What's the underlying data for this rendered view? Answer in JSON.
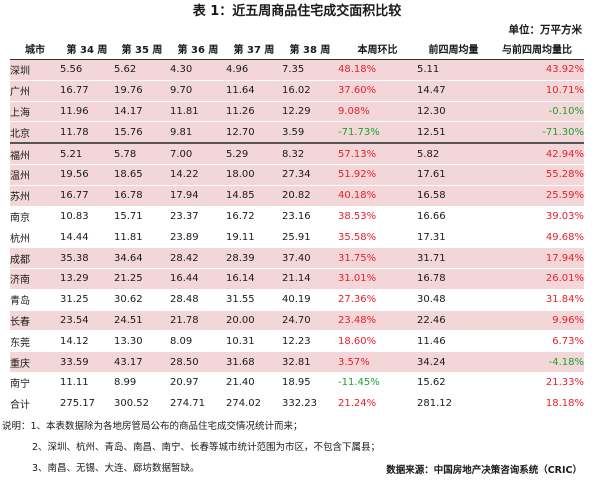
{
  "title": "表 1：近五周商品住宅成交面积比较",
  "unit": "单位：万平方米",
  "chart_data": {
    "type": "table",
    "columns": [
      "城市",
      "第 34 周",
      "第 35 周",
      "第 36 周",
      "第 37 周",
      "第 38 周",
      "本周环比",
      "前四周均量",
      "与前四周均量比"
    ],
    "rows": [
      {
        "city": "深圳",
        "w34": "5.56",
        "w35": "5.62",
        "w36": "4.30",
        "w37": "4.96",
        "w38": "7.35",
        "wow": "48.18%",
        "avg4": "5.11",
        "vs_avg4": "43.92%"
      },
      {
        "city": "广州",
        "w34": "16.77",
        "w35": "19.76",
        "w36": "9.70",
        "w37": "11.64",
        "w38": "16.02",
        "wow": "37.60%",
        "avg4": "14.47",
        "vs_avg4": "10.71%"
      },
      {
        "city": "上海",
        "w34": "11.96",
        "w35": "14.17",
        "w36": "11.81",
        "w37": "11.26",
        "w38": "12.29",
        "wow": "9.08%",
        "avg4": "12.30",
        "vs_avg4": "-0.10%"
      },
      {
        "city": "北京",
        "w34": "11.78",
        "w35": "15.76",
        "w36": "9.81",
        "w37": "12.70",
        "w38": "3.59",
        "wow": "-71.73%",
        "avg4": "12.51",
        "vs_avg4": "-71.30%"
      },
      {
        "city": "福州",
        "w34": "5.21",
        "w35": "5.78",
        "w36": "7.00",
        "w37": "5.29",
        "w38": "8.32",
        "wow": "57.13%",
        "avg4": "5.82",
        "vs_avg4": "42.94%"
      },
      {
        "city": "温州",
        "w34": "19.56",
        "w35": "18.65",
        "w36": "14.22",
        "w37": "18.00",
        "w38": "27.34",
        "wow": "51.92%",
        "avg4": "17.61",
        "vs_avg4": "55.28%"
      },
      {
        "city": "苏州",
        "w34": "16.77",
        "w35": "16.78",
        "w36": "17.94",
        "w37": "14.85",
        "w38": "20.82",
        "wow": "40.18%",
        "avg4": "16.58",
        "vs_avg4": "25.59%"
      },
      {
        "city": "南京",
        "w34": "10.83",
        "w35": "15.71",
        "w36": "23.37",
        "w37": "16.72",
        "w38": "23.16",
        "wow": "38.53%",
        "avg4": "16.66",
        "vs_avg4": "39.03%"
      },
      {
        "city": "杭州",
        "w34": "14.44",
        "w35": "11.81",
        "w36": "23.89",
        "w37": "19.11",
        "w38": "25.91",
        "wow": "35.58%",
        "avg4": "17.31",
        "vs_avg4": "49.68%"
      },
      {
        "city": "成都",
        "w34": "35.38",
        "w35": "34.64",
        "w36": "28.42",
        "w37": "28.39",
        "w38": "37.40",
        "wow": "31.75%",
        "avg4": "31.71",
        "vs_avg4": "17.94%"
      },
      {
        "city": "济南",
        "w34": "13.29",
        "w35": "21.25",
        "w36": "16.44",
        "w37": "16.14",
        "w38": "21.14",
        "wow": "31.01%",
        "avg4": "16.78",
        "vs_avg4": "26.01%"
      },
      {
        "city": "青岛",
        "w34": "31.25",
        "w35": "30.62",
        "w36": "28.48",
        "w37": "31.55",
        "w38": "40.19",
        "wow": "27.36%",
        "avg4": "30.48",
        "vs_avg4": "31.84%"
      },
      {
        "city": "长春",
        "w34": "23.54",
        "w35": "24.51",
        "w36": "21.78",
        "w37": "20.00",
        "w38": "24.70",
        "wow": "23.48%",
        "avg4": "22.46",
        "vs_avg4": "9.96%"
      },
      {
        "city": "东莞",
        "w34": "14.12",
        "w35": "13.30",
        "w36": "8.09",
        "w37": "10.31",
        "w38": "12.23",
        "wow": "18.60%",
        "avg4": "11.46",
        "vs_avg4": "6.73%"
      },
      {
        "city": "重庆",
        "w34": "33.59",
        "w35": "43.17",
        "w36": "28.50",
        "w37": "31.68",
        "w38": "32.81",
        "wow": "3.57%",
        "avg4": "34.24",
        "vs_avg4": "-4.18%"
      },
      {
        "city": "南宁",
        "w34": "11.11",
        "w35": "8.99",
        "w36": "20.97",
        "w37": "21.40",
        "w38": "18.95",
        "wow": "-11.45%",
        "avg4": "15.62",
        "vs_avg4": "21.33%"
      }
    ],
    "total": {
      "city": "合计",
      "w34": "275.17",
      "w35": "300.52",
      "w36": "274.71",
      "w37": "274.02",
      "w38": "332.23",
      "wow": "21.24%",
      "avg4": "281.12",
      "vs_avg4": "18.18%"
    }
  },
  "notes": [
    "说明：1、本表数据除为各地房管局公布的商品住宅成交情况统计而来；",
    "2、深圳、杭州、青岛、南昌、南宁、长春等城市统计范围为市区，不包含下属县；",
    "3、南昌、无锡、大连、廊坊数据暂缺。"
  ],
  "source": "数据来源：中国房地产决策咨询系统（CRIC）",
  "colors": {
    "row_highlight": "#f3d7d8",
    "positive": "#e8202a",
    "negative": "#1fa033"
  }
}
